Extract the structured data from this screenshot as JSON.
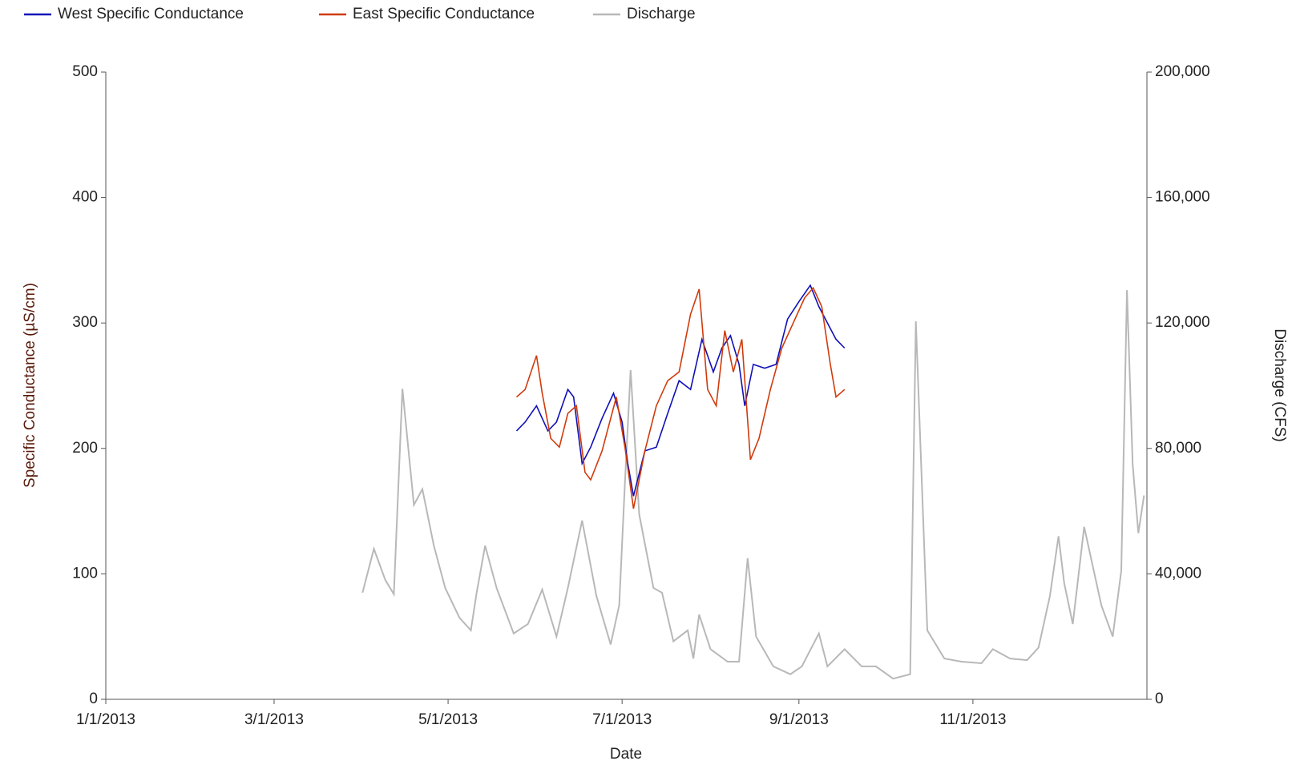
{
  "chart_data": {
    "type": "line",
    "xlabel": "Date",
    "ylabel": "Specific Conductance (µS/cm)",
    "y2label": "Discharge (CFS)",
    "xlim": [
      "2013-01-01",
      "2014-01-01"
    ],
    "xticks": [
      {
        "value": "2013-01-01",
        "label": "1/1/2013"
      },
      {
        "value": "2013-03-01",
        "label": "3/1/2013"
      },
      {
        "value": "2013-05-01",
        "label": "5/1/2013"
      },
      {
        "value": "2013-07-01",
        "label": "7/1/2013"
      },
      {
        "value": "2013-09-01",
        "label": "9/1/2013"
      },
      {
        "value": "2013-11-01",
        "label": "11/1/2013"
      }
    ],
    "ylim": [
      0,
      500
    ],
    "yticks": [
      0,
      100,
      200,
      300,
      400,
      500
    ],
    "y2lim": [
      0,
      200000
    ],
    "y2ticks": [
      0,
      {
        "value": 40000,
        "label": "40,000"
      },
      {
        "value": 80000,
        "label": "80,000"
      },
      {
        "value": 120000,
        "label": "120,000"
      },
      {
        "value": 160000,
        "label": "160,000"
      },
      {
        "value": 200000,
        "label": "200,000"
      }
    ],
    "legend": "top",
    "series": [
      {
        "name": "West Specific Conductance",
        "color": "#1010b8",
        "x": [
          "2013-05-25",
          "2013-05-28",
          "2013-06-01",
          "2013-06-05",
          "2013-06-08",
          "2013-06-12",
          "2013-06-14",
          "2013-06-17",
          "2013-06-20",
          "2013-06-24",
          "2013-06-28",
          "2013-07-01",
          "2013-07-03",
          "2013-07-05",
          "2013-07-09",
          "2013-07-13",
          "2013-07-17",
          "2013-07-21",
          "2013-07-25",
          "2013-07-29",
          "2013-08-02",
          "2013-08-05",
          "2013-08-08",
          "2013-08-11",
          "2013-08-13",
          "2013-08-16",
          "2013-08-20",
          "2013-08-24",
          "2013-08-28",
          "2013-09-01",
          "2013-09-05",
          "2013-09-08",
          "2013-09-11",
          "2013-09-14",
          "2013-09-17"
        ],
        "values": [
          214,
          221,
          234,
          214,
          221,
          247,
          241,
          188,
          201,
          224,
          244,
          221,
          188,
          162,
          198,
          201,
          228,
          254,
          247,
          287,
          261,
          280,
          290,
          267,
          234,
          267,
          264,
          267,
          303,
          317,
          330,
          313,
          300,
          287,
          280
        ]
      },
      {
        "name": "East Specific Conductance",
        "color": "#d03a0a",
        "x": [
          "2013-05-25",
          "2013-05-28",
          "2013-06-01",
          "2013-06-03",
          "2013-06-06",
          "2013-06-09",
          "2013-06-12",
          "2013-06-15",
          "2013-06-18",
          "2013-06-20",
          "2013-06-24",
          "2013-06-29",
          "2013-07-02",
          "2013-07-05",
          "2013-07-09",
          "2013-07-13",
          "2013-07-17",
          "2013-07-21",
          "2013-07-25",
          "2013-07-28",
          "2013-07-31",
          "2013-08-03",
          "2013-08-06",
          "2013-08-09",
          "2013-08-12",
          "2013-08-15",
          "2013-08-18",
          "2013-08-22",
          "2013-08-26",
          "2013-08-30",
          "2013-09-03",
          "2013-09-06",
          "2013-09-09",
          "2013-09-12",
          "2013-09-14",
          "2013-09-17"
        ],
        "values": [
          241,
          247,
          274,
          244,
          208,
          201,
          228,
          234,
          181,
          175,
          198,
          241,
          201,
          152,
          198,
          234,
          254,
          261,
          307,
          327,
          247,
          234,
          294,
          261,
          287,
          191,
          208,
          247,
          280,
          300,
          320,
          328,
          313,
          267,
          241,
          247
        ]
      },
      {
        "name": "Discharge",
        "color": "#b8b8b8",
        "axis": "y2",
        "x": [
          "2013-04-01",
          "2013-04-05",
          "2013-04-09",
          "2013-04-12",
          "2013-04-15",
          "2013-04-19",
          "2013-04-22",
          "2013-04-26",
          "2013-04-30",
          "2013-05-05",
          "2013-05-09",
          "2013-05-11",
          "2013-05-14",
          "2013-05-18",
          "2013-05-24",
          "2013-05-29",
          "2013-06-03",
          "2013-06-08",
          "2013-06-12",
          "2013-06-17",
          "2013-06-22",
          "2013-06-27",
          "2013-06-30",
          "2013-07-02",
          "2013-07-04",
          "2013-07-07",
          "2013-07-12",
          "2013-07-15",
          "2013-07-19",
          "2013-07-24",
          "2013-07-26",
          "2013-07-28",
          "2013-08-01",
          "2013-08-07",
          "2013-08-11",
          "2013-08-14",
          "2013-08-17",
          "2013-08-23",
          "2013-08-29",
          "2013-09-02",
          "2013-09-08",
          "2013-09-11",
          "2013-09-17",
          "2013-09-23",
          "2013-09-28",
          "2013-10-04",
          "2013-10-10",
          "2013-10-12",
          "2013-10-16",
          "2013-10-22",
          "2013-10-28",
          "2013-11-04",
          "2013-11-08",
          "2013-11-14",
          "2013-11-20",
          "2013-11-24",
          "2013-11-28",
          "2013-12-01",
          "2013-12-03",
          "2013-12-06",
          "2013-12-10",
          "2013-12-16",
          "2013-12-20",
          "2013-12-23",
          "2013-12-25",
          "2013-12-27",
          "2013-12-29",
          "2013-12-31"
        ],
        "values": [
          34000,
          48000,
          38000,
          33500,
          99000,
          62000,
          67000,
          49000,
          35500,
          26000,
          22000,
          34000,
          49000,
          35500,
          21000,
          24000,
          35000,
          20000,
          35500,
          57000,
          33000,
          17500,
          30000,
          69000,
          105000,
          59000,
          35500,
          34000,
          18500,
          22000,
          13000,
          27000,
          16000,
          12000,
          12000,
          45000,
          20000,
          10500,
          8000,
          10500,
          21000,
          10500,
          16000,
          10500,
          10500,
          6600,
          8000,
          120500,
          22000,
          13000,
          12000,
          11500,
          16000,
          13000,
          12500,
          16500,
          33000,
          52000,
          37000,
          24000,
          55000,
          30000,
          20000,
          41000,
          130500,
          75000,
          53000,
          65000
        ]
      }
    ]
  }
}
